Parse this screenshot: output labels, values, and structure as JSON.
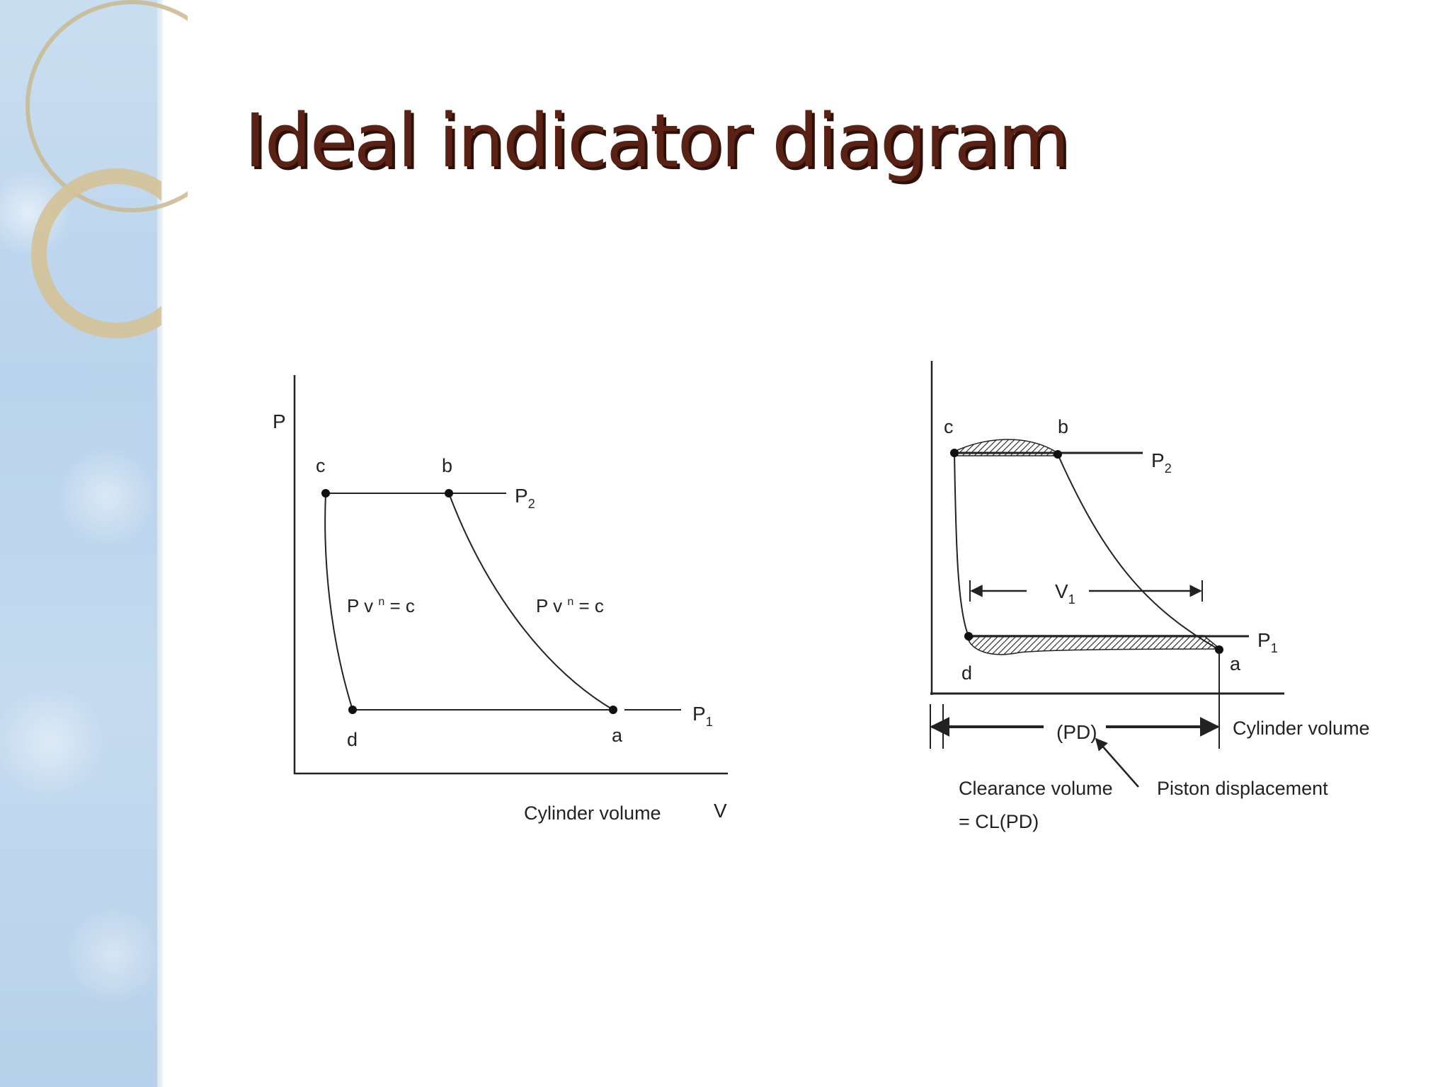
{
  "slide": {
    "title": "Ideal indicator diagram"
  },
  "left_diagram": {
    "y_axis_label": "P",
    "x_axis_label": "V",
    "x_caption": "Cylinder volume",
    "points": {
      "c": "c",
      "b": "b",
      "d": "d",
      "a": "a"
    },
    "p2": {
      "main": "P",
      "sub": "2"
    },
    "p1": {
      "main": "P",
      "sub": "1"
    },
    "curve_label_left": {
      "pre": "P v ",
      "sup": "n",
      "post": " = c"
    },
    "curve_label_right": {
      "pre": "P v ",
      "sup": "n",
      "post": " = c"
    }
  },
  "right_diagram": {
    "points": {
      "c": "c",
      "b": "b",
      "d": "d",
      "a": "a"
    },
    "p2": {
      "main": "P",
      "sub": "2"
    },
    "p1": {
      "main": "P",
      "sub": "1"
    },
    "v1": {
      "main": "V",
      "sub": "1"
    },
    "pd_label": "(PD)",
    "x_caption": "Cylinder volume",
    "clearance_line1": "Clearance volume",
    "clearance_line2": "= CL(PD)",
    "piston_label": "Piston displacement"
  }
}
